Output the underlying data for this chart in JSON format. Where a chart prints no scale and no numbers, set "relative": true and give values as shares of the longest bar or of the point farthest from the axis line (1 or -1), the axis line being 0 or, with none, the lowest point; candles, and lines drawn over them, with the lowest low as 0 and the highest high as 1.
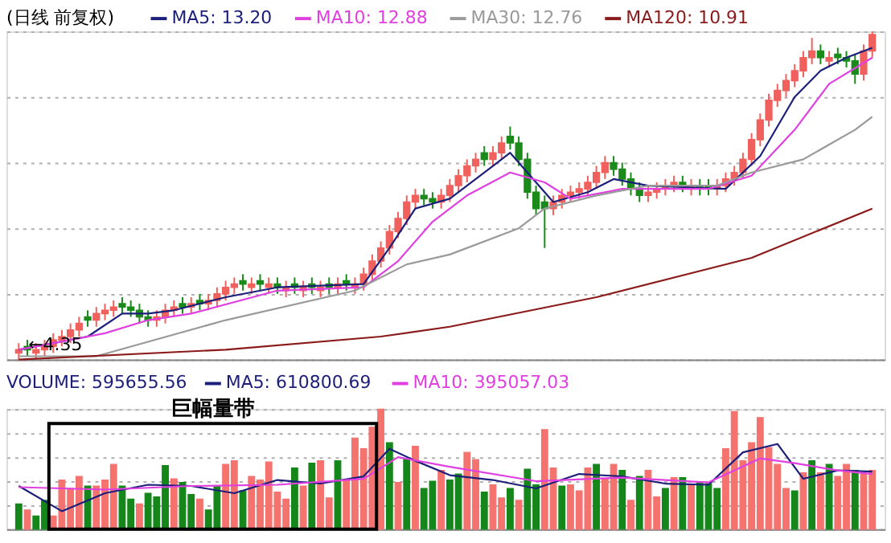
{
  "chart_data": [
    {
      "type": "candlestick",
      "title": "(日线 前复权)",
      "relative": true,
      "grid": true,
      "legend": "top left",
      "categories": [
        null,
        null,
        null,
        null,
        null,
        null,
        null,
        null,
        null,
        null,
        null,
        null,
        null,
        null,
        null,
        null,
        null,
        null,
        null,
        null,
        null,
        null,
        null,
        null,
        null,
        null,
        null,
        null,
        null,
        null,
        null,
        null,
        null,
        null,
        null,
        null,
        null,
        null,
        null,
        null,
        null,
        null,
        null,
        null,
        null,
        null,
        null,
        null,
        null,
        null,
        null,
        null,
        null,
        null,
        null,
        null,
        null,
        null,
        null,
        null,
        null,
        null,
        null,
        null,
        null,
        null,
        null,
        null,
        null,
        null,
        null,
        null,
        null,
        null,
        null,
        null,
        null,
        null,
        null,
        null,
        null,
        null,
        null,
        null,
        null,
        null,
        null,
        null,
        null,
        null,
        null,
        null,
        null,
        null,
        null,
        null,
        null,
        null,
        null,
        null
      ],
      "colors": [
        "#f0605d",
        "#1a8a1a",
        "#f0605d",
        "#f0605d",
        "#f0605d",
        "#f0605d",
        "#f0605d",
        "#f0605d",
        "#1a8a1a",
        "#f0605d",
        "#f0605d",
        "#f0605d",
        "#1a8a1a",
        "#1a8a1a",
        "#1a8a1a",
        "#1a8a1a",
        "#f0605d",
        "#f0605d",
        "#f0605d",
        "#1a8a1a",
        "#f0605d",
        "#1a8a1a",
        "#f0605d",
        "#f0605d",
        "#f0605d",
        "#f0605d",
        "#1a8a1a",
        "#f0605d",
        "#1a8a1a",
        "#f0605d",
        "#1a8a1a",
        "#f0605d",
        "#1a8a1a",
        "#f0605d",
        "#1a8a1a",
        "#f0605d",
        "#1a8a1a",
        "#f0605d",
        "#1a8a1a",
        "#f0605d",
        "#f0605d",
        "#f0605d",
        "#f0605d",
        "#f0605d",
        "#f0605d",
        "#f0605d",
        "#f0605d",
        "#1a8a1a",
        "#1a8a1a",
        "#f0605d",
        "#f0605d",
        "#f0605d",
        "#f0605d",
        "#f0605d",
        "#1a8a1a",
        "#f0605d",
        "#f0605d",
        "#1a8a1a",
        "#1a8a1a",
        "#1a8a1a",
        "#1a8a1a",
        "#1a8a1a",
        "#f0605d",
        "#f0605d",
        "#f0605d",
        "#f0605d",
        "#f0605d",
        "#f0605d",
        "#f0605d",
        "#1a8a1a",
        "#1a8a1a",
        "#1a8a1a",
        "#1a8a1a",
        "#f0605d",
        "#f0605d",
        "#f0605d",
        "#f0605d",
        "#1a8a1a",
        "#f0605d",
        "#1a8a1a",
        "#1a8a1a",
        "#f0605d",
        "#f0605d",
        "#f0605d",
        "#f0605d",
        "#f0605d",
        "#f0605d",
        "#f0605d",
        "#f0605d",
        "#f0605d",
        "#f0605d",
        "#f0605d",
        "#f0605d",
        "#1a8a1a",
        "#f0605d",
        "#1a8a1a",
        "#1a8a1a",
        "#1a8a1a",
        "#f0605d",
        "#f0605d"
      ],
      "ohlc": [
        [
          0.02,
          0.05,
          0,
          0.03
        ],
        [
          0.04,
          0.06,
          0.01,
          0.03
        ],
        [
          0.02,
          0.05,
          0.0,
          0.03
        ],
        [
          0.03,
          0.06,
          0.01,
          0.04
        ],
        [
          0.04,
          0.08,
          0.02,
          0.06
        ],
        [
          0.06,
          0.09,
          0.04,
          0.07
        ],
        [
          0.07,
          0.11,
          0.05,
          0.09
        ],
        [
          0.09,
          0.13,
          0.07,
          0.11
        ],
        [
          0.13,
          0.15,
          0.1,
          0.12
        ],
        [
          0.12,
          0.16,
          0.1,
          0.14
        ],
        [
          0.14,
          0.17,
          0.12,
          0.15
        ],
        [
          0.15,
          0.18,
          0.13,
          0.16
        ],
        [
          0.17,
          0.19,
          0.14,
          0.16
        ],
        [
          0.16,
          0.18,
          0.13,
          0.15
        ],
        [
          0.15,
          0.17,
          0.11,
          0.13
        ],
        [
          0.13,
          0.15,
          0.1,
          0.12
        ],
        [
          0.12,
          0.15,
          0.1,
          0.13
        ],
        [
          0.13,
          0.17,
          0.11,
          0.15
        ],
        [
          0.15,
          0.18,
          0.13,
          0.16
        ],
        [
          0.17,
          0.19,
          0.14,
          0.16
        ],
        [
          0.16,
          0.19,
          0.14,
          0.17
        ],
        [
          0.18,
          0.2,
          0.15,
          0.17
        ],
        [
          0.17,
          0.2,
          0.15,
          0.18
        ],
        [
          0.18,
          0.22,
          0.16,
          0.2
        ],
        [
          0.2,
          0.24,
          0.18,
          0.22
        ],
        [
          0.22,
          0.25,
          0.2,
          0.23
        ],
        [
          0.24,
          0.26,
          0.21,
          0.23
        ],
        [
          0.22,
          0.25,
          0.2,
          0.23
        ],
        [
          0.24,
          0.26,
          0.21,
          0.23
        ],
        [
          0.22,
          0.25,
          0.2,
          0.23
        ],
        [
          0.23,
          0.25,
          0.2,
          0.22
        ],
        [
          0.21,
          0.24,
          0.19,
          0.22
        ],
        [
          0.23,
          0.25,
          0.2,
          0.22
        ],
        [
          0.21,
          0.24,
          0.19,
          0.22
        ],
        [
          0.23,
          0.25,
          0.2,
          0.22
        ],
        [
          0.21,
          0.24,
          0.19,
          0.22
        ],
        [
          0.23,
          0.25,
          0.2,
          0.22
        ],
        [
          0.22,
          0.25,
          0.2,
          0.23
        ],
        [
          0.24,
          0.26,
          0.21,
          0.23
        ],
        [
          0.22,
          0.25,
          0.2,
          0.23
        ],
        [
          0.23,
          0.28,
          0.21,
          0.26
        ],
        [
          0.26,
          0.32,
          0.24,
          0.3
        ],
        [
          0.3,
          0.36,
          0.28,
          0.34
        ],
        [
          0.34,
          0.41,
          0.32,
          0.39
        ],
        [
          0.39,
          0.45,
          0.37,
          0.43
        ],
        [
          0.43,
          0.5,
          0.41,
          0.48
        ],
        [
          0.48,
          0.52,
          0.46,
          0.5
        ],
        [
          0.5,
          0.52,
          0.47,
          0.49
        ],
        [
          0.49,
          0.51,
          0.46,
          0.48
        ],
        [
          0.48,
          0.52,
          0.46,
          0.5
        ],
        [
          0.5,
          0.55,
          0.48,
          0.53
        ],
        [
          0.53,
          0.58,
          0.51,
          0.56
        ],
        [
          0.56,
          0.61,
          0.54,
          0.59
        ],
        [
          0.59,
          0.63,
          0.57,
          0.61
        ],
        [
          0.63,
          0.65,
          0.59,
          0.61
        ],
        [
          0.61,
          0.65,
          0.59,
          0.63
        ],
        [
          0.63,
          0.68,
          0.61,
          0.66
        ],
        [
          0.68,
          0.71,
          0.64,
          0.66
        ],
        [
          0.66,
          0.68,
          0.59,
          0.61
        ],
        [
          0.61,
          0.63,
          0.49,
          0.51
        ],
        [
          0.51,
          0.53,
          0.44,
          0.46
        ],
        [
          0.48,
          0.5,
          0.34,
          0.46
        ],
        [
          0.46,
          0.5,
          0.44,
          0.48
        ],
        [
          0.48,
          0.52,
          0.46,
          0.5
        ],
        [
          0.5,
          0.53,
          0.48,
          0.51
        ],
        [
          0.51,
          0.54,
          0.49,
          0.52
        ],
        [
          0.52,
          0.56,
          0.5,
          0.54
        ],
        [
          0.54,
          0.59,
          0.52,
          0.57
        ],
        [
          0.57,
          0.62,
          0.55,
          0.6
        ],
        [
          0.6,
          0.62,
          0.56,
          0.58
        ],
        [
          0.58,
          0.6,
          0.53,
          0.55
        ],
        [
          0.55,
          0.57,
          0.5,
          0.52
        ],
        [
          0.52,
          0.54,
          0.48,
          0.5
        ],
        [
          0.5,
          0.53,
          0.48,
          0.51
        ],
        [
          0.51,
          0.54,
          0.49,
          0.52
        ],
        [
          0.52,
          0.55,
          0.5,
          0.53
        ],
        [
          0.53,
          0.56,
          0.51,
          0.54
        ],
        [
          0.54,
          0.56,
          0.51,
          0.53
        ],
        [
          0.52,
          0.55,
          0.5,
          0.53
        ],
        [
          0.53,
          0.55,
          0.5,
          0.52
        ],
        [
          0.53,
          0.55,
          0.5,
          0.52
        ],
        [
          0.52,
          0.55,
          0.5,
          0.53
        ],
        [
          0.53,
          0.57,
          0.51,
          0.55
        ],
        [
          0.55,
          0.59,
          0.53,
          0.57
        ],
        [
          0.57,
          0.63,
          0.55,
          0.61
        ],
        [
          0.61,
          0.69,
          0.59,
          0.67
        ],
        [
          0.67,
          0.75,
          0.65,
          0.73
        ],
        [
          0.73,
          0.81,
          0.71,
          0.79
        ],
        [
          0.79,
          0.84,
          0.77,
          0.82
        ],
        [
          0.82,
          0.87,
          0.8,
          0.85
        ],
        [
          0.85,
          0.9,
          0.83,
          0.88
        ],
        [
          0.88,
          0.94,
          0.86,
          0.92
        ],
        [
          0.92,
          0.98,
          0.9,
          0.94
        ],
        [
          0.94,
          0.96,
          0.9,
          0.92
        ],
        [
          0.91,
          0.94,
          0.89,
          0.92
        ],
        [
          0.93,
          0.95,
          0.9,
          0.92
        ],
        [
          0.92,
          0.94,
          0.89,
          0.91
        ],
        [
          0.91,
          0.93,
          0.84,
          0.87
        ],
        [
          0.87,
          0.96,
          0.85,
          0.94
        ],
        [
          0.94,
          1.0,
          0.92,
          0.99
        ]
      ],
      "series": [
        {
          "name": "MA5: 13.20",
          "type": "line",
          "color": "#1c1f7a",
          "values": [
            0.03,
            null,
            null,
            null,
            null,
            null,
            null,
            null,
            0.07,
            null,
            null,
            null,
            0.14,
            null,
            null,
            0.14,
            null,
            null,
            0.15,
            null,
            null,
            null,
            null,
            null,
            0.19,
            null,
            null,
            null,
            null,
            null,
            0.22,
            null,
            null,
            null,
            null,
            null,
            null,
            null,
            null,
            null,
            0.23,
            null,
            null,
            0.34,
            null,
            null,
            0.46,
            null,
            null,
            null,
            0.49,
            null,
            null,
            null,
            null,
            0.59,
            null,
            0.63,
            null,
            null,
            0.54,
            null,
            0.48,
            null,
            null,
            null,
            0.51,
            null,
            null,
            0.55,
            null,
            null,
            null,
            0.53,
            null,
            null,
            null,
            null,
            null,
            null,
            null,
            null,
            0.52,
            null,
            null,
            null,
            0.62,
            null,
            null,
            null,
            0.8,
            null,
            null,
            0.88,
            null,
            null,
            0.92,
            null,
            null,
            0.95
          ]
        },
        {
          "name": "MA10: 12.88",
          "type": "line",
          "color": "#e040e0",
          "values": [
            0.03,
            null,
            null,
            null,
            null,
            null,
            null,
            null,
            null,
            null,
            0.08,
            null,
            null,
            null,
            null,
            0.12,
            null,
            null,
            null,
            null,
            0.14,
            null,
            null,
            null,
            null,
            null,
            null,
            null,
            null,
            null,
            0.21,
            null,
            null,
            null,
            null,
            null,
            null,
            null,
            null,
            null,
            0.22,
            null,
            null,
            null,
            0.3,
            null,
            null,
            null,
            0.42,
            null,
            null,
            null,
            0.5,
            null,
            null,
            null,
            null,
            0.57,
            null,
            null,
            null,
            0.54,
            null,
            null,
            0.49,
            null,
            null,
            null,
            null,
            null,
            0.52,
            null,
            null,
            null,
            null,
            null,
            null,
            null,
            null,
            null,
            0.52,
            null,
            null,
            null,
            null,
            0.56,
            null,
            null,
            null,
            null,
            0.7,
            null,
            null,
            null,
            0.84,
            null,
            null,
            null,
            null,
            0.92
          ]
        },
        {
          "name": "MA30: 12.76",
          "type": "line",
          "color": "#9a9a9a",
          "values": [
            0.01,
            null,
            null,
            null,
            null,
            null,
            null,
            null,
            null,
            0.01,
            null,
            null,
            null,
            null,
            null,
            null,
            null,
            null,
            null,
            null,
            null,
            null,
            null,
            null,
            0.12,
            null,
            null,
            null,
            null,
            null,
            null,
            null,
            null,
            null,
            null,
            null,
            null,
            null,
            null,
            0.21,
            null,
            null,
            null,
            null,
            null,
            0.29,
            null,
            null,
            null,
            null,
            0.32,
            null,
            null,
            null,
            null,
            null,
            null,
            null,
            0.4,
            null,
            null,
            0.46,
            null,
            null,
            null,
            null,
            null,
            0.5,
            null,
            null,
            null,
            null,
            null,
            0.53,
            null,
            null,
            null,
            null,
            null,
            null,
            null,
            0.53,
            null,
            null,
            null,
            0.57,
            null,
            null,
            null,
            null,
            null,
            0.61,
            null,
            null,
            null,
            null,
            null,
            0.7,
            null,
            0.74
          ]
        },
        {
          "name": "MA120: 10.91",
          "type": "line",
          "color": "#8b1a1a",
          "values": [
            0,
            null,
            null,
            null,
            null,
            null,
            null,
            null,
            null,
            null,
            null,
            null,
            null,
            null,
            null,
            null,
            null,
            null,
            null,
            null,
            null,
            null,
            null,
            null,
            0.03,
            null,
            null,
            null,
            null,
            null,
            null,
            null,
            null,
            null,
            null,
            null,
            null,
            null,
            null,
            null,
            null,
            null,
            0.07,
            null,
            null,
            null,
            null,
            null,
            null,
            null,
            0.1,
            null,
            null,
            null,
            null,
            null,
            null,
            null,
            null,
            null,
            null,
            null,
            null,
            null,
            null,
            null,
            null,
            0.19,
            null,
            null,
            null,
            null,
            null,
            null,
            null,
            null,
            null,
            null,
            null,
            null,
            null,
            null,
            null,
            null,
            null,
            0.31,
            null,
            null,
            null,
            null,
            null,
            null,
            null,
            null,
            null,
            null,
            null,
            null,
            null,
            0.46
          ]
        }
      ],
      "annotations": [
        "←4.35"
      ]
    },
    {
      "type": "bar",
      "relative": true,
      "grid": true,
      "legend": "top left",
      "legend_title": "VOLUME: 595655.56",
      "categories": [
        null,
        null,
        null,
        null,
        null,
        null,
        null,
        null,
        null,
        null,
        null,
        null,
        null,
        null,
        null,
        null,
        null,
        null,
        null,
        null,
        null,
        null,
        null,
        null,
        null,
        null,
        null,
        null,
        null,
        null,
        null,
        null,
        null,
        null,
        null,
        null,
        null,
        null,
        null,
        null,
        null,
        null,
        null,
        null,
        null,
        null,
        null,
        null,
        null,
        null,
        null,
        null,
        null,
        null,
        null,
        null,
        null,
        null,
        null,
        null,
        null,
        null,
        null,
        null,
        null,
        null,
        null,
        null,
        null,
        null,
        null,
        null,
        null,
        null,
        null,
        null,
        null,
        null,
        null,
        null,
        null,
        null,
        null,
        null,
        null,
        null,
        null,
        null,
        null,
        null,
        null,
        null,
        null,
        null,
        null,
        null,
        null,
        null,
        null,
        null
      ],
      "values": [
        0.21,
        0.16,
        0.11,
        0.24,
        0.11,
        0.41,
        0.34,
        0.44,
        0.36,
        0.36,
        0.41,
        0.54,
        0.36,
        0.25,
        0.21,
        0.3,
        0.27,
        0.53,
        0.42,
        0.39,
        0.29,
        0.25,
        0.16,
        0.36,
        0.54,
        0.57,
        0.32,
        0.44,
        0.41,
        0.56,
        0.31,
        0.25,
        0.51,
        0.36,
        0.55,
        0.57,
        0.26,
        0.57,
        0.41,
        0.76,
        0.67,
        0.85,
        1.0,
        0.72,
        0.39,
        0.59,
        0.69,
        0.34,
        0.4,
        0.49,
        0.41,
        0.46,
        0.64,
        0.58,
        0.31,
        0.37,
        0.26,
        0.34,
        0.24,
        0.5,
        0.37,
        0.83,
        0.51,
        0.36,
        0.37,
        0.32,
        0.51,
        0.54,
        0.42,
        0.54,
        0.49,
        0.24,
        0.44,
        0.49,
        0.27,
        0.34,
        0.43,
        0.43,
        0.37,
        0.39,
        0.38,
        0.34,
        0.67,
        0.98,
        0.57,
        0.72,
        0.93,
        0.68,
        0.54,
        0.34,
        0.32,
        0.47,
        0.57,
        0.47,
        0.54,
        0.44,
        0.54,
        0.49,
        0.46,
        0.49
      ],
      "colors": [
        "#14861a",
        "#f4736f",
        "#14861a",
        "#14861a",
        "#f4736f",
        "#f4736f",
        "#f4736f",
        "#f4736f",
        "#14861a",
        "#f4736f",
        "#f4736f",
        "#f4736f",
        "#14861a",
        "#14861a",
        "#f4736f",
        "#14861a",
        "#14861a",
        "#14861a",
        "#f4736f",
        "#14861a",
        "#14861a",
        "#f4736f",
        "#14861a",
        "#14861a",
        "#f4736f",
        "#f4736f",
        "#14861a",
        "#f4736f",
        "#f4736f",
        "#f4736f",
        "#f4736f",
        "#f4736f",
        "#14861a",
        "#f4736f",
        "#14861a",
        "#f4736f",
        "#f4736f",
        "#14861a",
        "#f4736f",
        "#f4736f",
        "#f4736f",
        "#f4736f",
        "#f4736f",
        "#14861a",
        "#f4736f",
        "#14861a",
        "#f4736f",
        "#14861a",
        "#14861a",
        "#f4736f",
        "#14861a",
        "#14861a",
        "#f4736f",
        "#f4736f",
        "#14861a",
        "#f4736f",
        "#f4736f",
        "#14861a",
        "#f4736f",
        "#14861a",
        "#14861a",
        "#f4736f",
        "#f4736f",
        "#14861a",
        "#f4736f",
        "#f4736f",
        "#f4736f",
        "#14861a",
        "#f4736f",
        "#f4736f",
        "#14861a",
        "#f4736f",
        "#14861a",
        "#f4736f",
        "#f4736f",
        "#14861a",
        "#f4736f",
        "#14861a",
        "#f4736f",
        "#14861a",
        "#14861a",
        "#14861a",
        "#f4736f",
        "#f4736f",
        "#f4736f",
        "#f4736f",
        "#f4736f",
        "#f4736f",
        "#f4736f",
        "#f4736f",
        "#14861a",
        "#f4736f",
        "#14861a",
        "#f4736f",
        "#14861a",
        "#f4736f",
        "#f4736f",
        "#14861a",
        "#f4736f",
        "#f4736f"
      ],
      "series": [
        {
          "name": "MA5: 610800.69",
          "type": "line",
          "color": "#1c1f7a",
          "values": [
            0.36,
            null,
            null,
            null,
            null,
            0.15,
            null,
            null,
            null,
            null,
            0.3,
            null,
            null,
            null,
            null,
            0.37,
            null,
            null,
            null,
            null,
            0.36,
            null,
            null,
            null,
            null,
            0.3,
            null,
            null,
            null,
            null,
            0.41,
            null,
            null,
            null,
            null,
            0.38,
            null,
            null,
            null,
            null,
            0.44,
            null,
            null,
            0.67,
            null,
            null,
            0.57,
            null,
            null,
            null,
            0.45,
            null,
            null,
            null,
            null,
            0.41,
            null,
            null,
            null,
            null,
            0.34,
            null,
            null,
            null,
            null,
            0.46,
            null,
            null,
            null,
            null,
            0.44,
            null,
            null,
            null,
            null,
            0.38,
            null,
            null,
            null,
            null,
            0.37,
            null,
            null,
            null,
            0.64,
            null,
            null,
            null,
            0.71,
            null,
            null,
            0.42,
            null,
            null,
            null,
            0.49,
            null,
            null,
            null,
            0.48
          ]
        },
        {
          "name": "MA10: 395057.03",
          "type": "line",
          "color": "#e040e0",
          "values": [
            0.35,
            null,
            null,
            null,
            null,
            null,
            null,
            null,
            null,
            null,
            0.33,
            null,
            null,
            null,
            null,
            null,
            null,
            null,
            null,
            null,
            0.36,
            null,
            null,
            null,
            null,
            null,
            null,
            null,
            null,
            null,
            0.37,
            null,
            null,
            null,
            null,
            null,
            null,
            null,
            null,
            null,
            0.42,
            null,
            null,
            null,
            0.6,
            null,
            null,
            null,
            null,
            null,
            0.52,
            null,
            null,
            null,
            null,
            null,
            null,
            null,
            null,
            null,
            0.4,
            null,
            null,
            null,
            null,
            null,
            null,
            null,
            null,
            null,
            0.43,
            null,
            null,
            null,
            null,
            null,
            null,
            null,
            null,
            null,
            0.39,
            null,
            null,
            null,
            null,
            null,
            0.59,
            null,
            null,
            null,
            0.55,
            null,
            null,
            null,
            null,
            0.49,
            null,
            null,
            null,
            0.46
          ]
        }
      ],
      "annotations": [
        "巨幅量带"
      ]
    }
  ]
}
